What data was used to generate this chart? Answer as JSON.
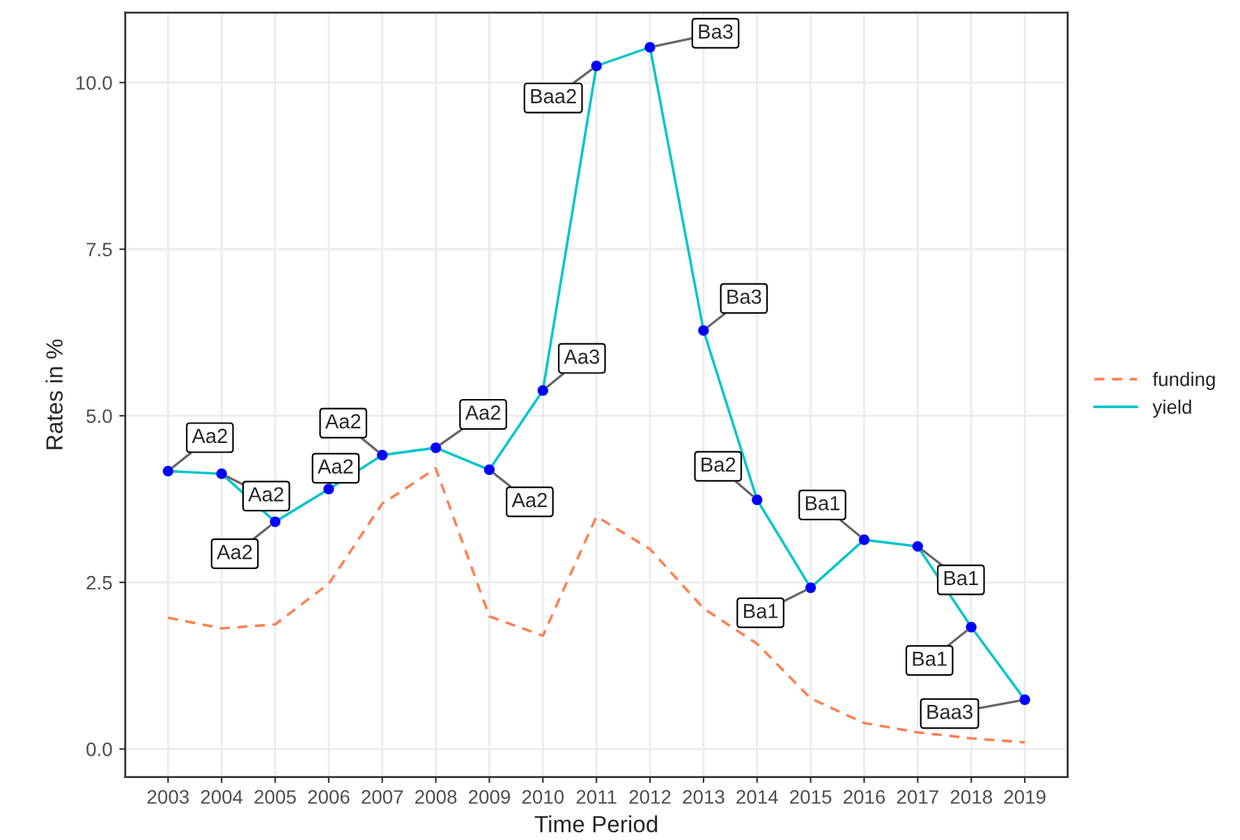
{
  "chart_data": {
    "type": "line",
    "xlabel": "Time Period",
    "ylabel": "Rates in %",
    "x": [
      2003,
      2004,
      2005,
      2006,
      2007,
      2008,
      2009,
      2010,
      2011,
      2012,
      2013,
      2014,
      2015,
      2016,
      2017,
      2018,
      2019
    ],
    "series": [
      {
        "name": "funding",
        "color": "#ff7f50",
        "line_style": "dashed",
        "values": [
          1.97,
          1.81,
          1.87,
          2.48,
          3.68,
          4.21,
          1.99,
          1.7,
          3.49,
          3.0,
          2.11,
          1.58,
          0.76,
          0.39,
          0.25,
          0.16,
          0.1
        ]
      },
      {
        "name": "yield",
        "color": "#00c5cd",
        "line_style": "solid",
        "values": [
          4.17,
          4.13,
          3.41,
          3.9,
          4.41,
          4.52,
          4.19,
          5.38,
          10.25,
          10.53,
          6.28,
          3.74,
          2.42,
          3.14,
          3.04,
          1.83,
          0.74
        ]
      },
      {
        "type": "scatter",
        "color": "#0000ff",
        "marker": "circle",
        "values": [
          4.17,
          4.13,
          3.41,
          3.9,
          4.41,
          4.52,
          4.19,
          5.38,
          10.25,
          10.53,
          6.28,
          3.74,
          2.42,
          3.14,
          3.04,
          1.83,
          0.74
        ]
      }
    ],
    "annotations": [
      {
        "text": "Aa2",
        "x": 2003,
        "y": 4.17
      },
      {
        "text": "Aa2",
        "x": 2004,
        "y": 4.13
      },
      {
        "text": "Aa2",
        "x": 2005,
        "y": 3.41
      },
      {
        "text": "Aa2",
        "x": 2006,
        "y": 3.9
      },
      {
        "text": "Aa2",
        "x": 2007,
        "y": 4.41
      },
      {
        "text": "Aa2",
        "x": 2008,
        "y": 4.52
      },
      {
        "text": "Aa2",
        "x": 2009,
        "y": 4.19
      },
      {
        "text": "Aa3",
        "x": 2010,
        "y": 5.38
      },
      {
        "text": "Baa2",
        "x": 2011,
        "y": 10.25
      },
      {
        "text": "Ba3",
        "x": 2012,
        "y": 10.53
      },
      {
        "text": "Ba3",
        "x": 2013,
        "y": 6.28
      },
      {
        "text": "Ba2",
        "x": 2014,
        "y": 3.74
      },
      {
        "text": "Ba1",
        "x": 2015,
        "y": 2.42
      },
      {
        "text": "Ba1",
        "x": 2016,
        "y": 3.14
      },
      {
        "text": "Ba1",
        "x": 2017,
        "y": 3.04
      },
      {
        "text": "Ba1",
        "x": 2018,
        "y": 1.83
      },
      {
        "text": "Baa3",
        "x": 2019,
        "y": 0.74
      }
    ],
    "xlim": [
      2002.2,
      2019.8
    ],
    "xticks": [
      2003,
      2004,
      2005,
      2006,
      2007,
      2008,
      2009,
      2010,
      2011,
      2012,
      2013,
      2014,
      2015,
      2016,
      2017,
      2018,
      2019
    ],
    "ylim": [
      -0.42,
      11.05
    ],
    "yticks": [
      {
        "value": 0,
        "label": "0.0"
      },
      {
        "value": 2.5,
        "label": "2.5"
      },
      {
        "value": 5,
        "label": "5.0"
      },
      {
        "value": 7.5,
        "label": "7.5"
      },
      {
        "value": 10,
        "label": "10.0"
      }
    ],
    "grid": true,
    "legend": "right"
  }
}
